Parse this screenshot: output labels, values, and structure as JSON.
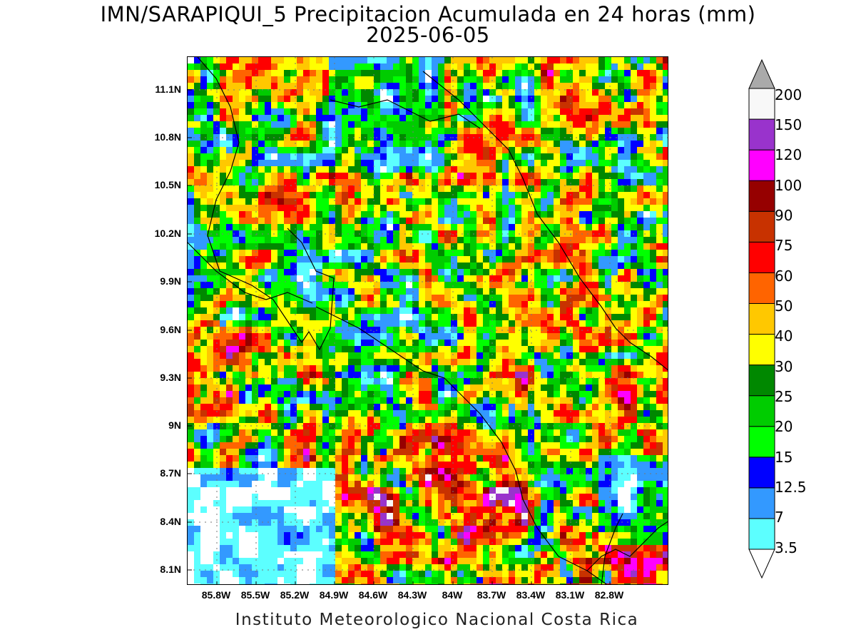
{
  "title": {
    "line1": "IMN/SARAPIQUI_5 Precipitacion Acumulada en 24 horas (mm)",
    "line2": "2025-06-05"
  },
  "footer": "Instituto Meteorologico Nacional Costa Rica",
  "map": {
    "lat_ticks": [
      "11.1N",
      "10.8N",
      "10.5N",
      "10.2N",
      "9.9N",
      "9.6N",
      "9.3N",
      "9N",
      "8.7N",
      "8.4N",
      "8.1N"
    ],
    "lon_ticks": [
      "85.8W",
      "85.5W",
      "85.2W",
      "84.9W",
      "84.6W",
      "84.3W",
      "84W",
      "83.7W",
      "83.4W",
      "83.1W",
      "82.8W"
    ],
    "variable": "accumulated precipitation 24h",
    "units": "mm"
  },
  "colorbar": {
    "levels": [
      "3.5",
      "7",
      "12.5",
      "15",
      "20",
      "25",
      "30",
      "40",
      "50",
      "60",
      "75",
      "90",
      "100",
      "120",
      "150",
      "200"
    ],
    "colors": [
      "#ffffff",
      "#5cffff",
      "#3399ff",
      "#0000ff",
      "#00ff00",
      "#00cc00",
      "#008800",
      "#ffff00",
      "#ffc800",
      "#ff6400",
      "#ff0000",
      "#c83200",
      "#960000",
      "#ff00ff",
      "#9933cc",
      "#f8f8f8",
      "#aaaaaa"
    ]
  }
}
